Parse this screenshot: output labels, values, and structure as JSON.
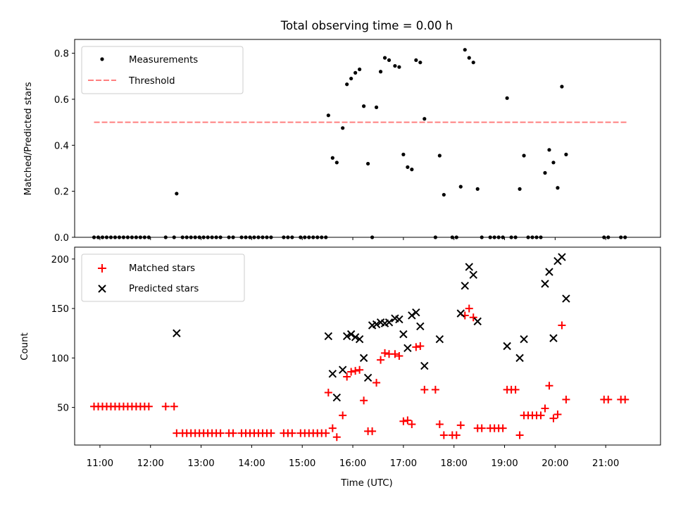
{
  "colors": {
    "measurement": "#000000",
    "threshold": "#ff7f7f",
    "matched": "#ff0000",
    "predicted": "#000000"
  },
  "chart_data": [
    {
      "type": "scatter",
      "title": "Total observing time = 0.00 h",
      "ylabel": "Matched/Predicted stars",
      "xlabel": "",
      "xlim": [
        "10:30",
        "22:05"
      ],
      "ylim": [
        0,
        0.86
      ],
      "yticks": [
        0.0,
        0.2,
        0.4,
        0.6,
        0.8
      ],
      "ytick_labels": [
        "0.0",
        "0.2",
        "0.4",
        "0.6",
        "0.8"
      ],
      "legend_position": "top-left",
      "legend": [
        "Measurements",
        "Threshold"
      ],
      "threshold": {
        "name": "Threshold",
        "y": 0.5,
        "x": [
          "10:53",
          "21:25"
        ]
      },
      "series": [
        {
          "name": "Measurements",
          "points": [
            [
              "10:53",
              0
            ],
            [
              "10:58",
              0
            ],
            [
              "11:03",
              0
            ],
            [
              "11:08",
              0
            ],
            [
              "11:13",
              0
            ],
            [
              "11:18",
              0
            ],
            [
              "11:23",
              0
            ],
            [
              "11:28",
              0
            ],
            [
              "11:33",
              0
            ],
            [
              "11:38",
              0
            ],
            [
              "11:43",
              0
            ],
            [
              "11:48",
              0
            ],
            [
              "11:53",
              0
            ],
            [
              "11:58",
              0
            ],
            [
              "12:18",
              0
            ],
            [
              "12:28",
              0
            ],
            [
              "12:31",
              0.19
            ],
            [
              "12:38",
              0
            ],
            [
              "12:43",
              0
            ],
            [
              "12:48",
              0
            ],
            [
              "12:53",
              0
            ],
            [
              "12:58",
              0
            ],
            [
              "13:03",
              0
            ],
            [
              "13:08",
              0
            ],
            [
              "13:13",
              0
            ],
            [
              "13:18",
              0
            ],
            [
              "13:23",
              0
            ],
            [
              "13:33",
              0
            ],
            [
              "13:38",
              0
            ],
            [
              "13:48",
              0
            ],
            [
              "13:53",
              0
            ],
            [
              "13:58",
              0
            ],
            [
              "14:03",
              0
            ],
            [
              "14:08",
              0
            ],
            [
              "14:13",
              0
            ],
            [
              "14:18",
              0
            ],
            [
              "14:23",
              0
            ],
            [
              "14:38",
              0
            ],
            [
              "14:43",
              0
            ],
            [
              "14:48",
              0
            ],
            [
              "14:58",
              0
            ],
            [
              "15:03",
              0
            ],
            [
              "15:08",
              0
            ],
            [
              "15:13",
              0
            ],
            [
              "15:18",
              0
            ],
            [
              "15:23",
              0
            ],
            [
              "15:28",
              0
            ],
            [
              "15:31",
              0.53
            ],
            [
              "15:36",
              0.345
            ],
            [
              "15:41",
              0.325
            ],
            [
              "15:48",
              0.475
            ],
            [
              "15:53",
              0.665
            ],
            [
              "15:58",
              0.69
            ],
            [
              "16:03",
              0.715
            ],
            [
              "16:08",
              0.73
            ],
            [
              "16:13",
              0.57
            ],
            [
              "16:18",
              0.32
            ],
            [
              "16:23",
              0
            ],
            [
              "16:28",
              0.565
            ],
            [
              "16:33",
              0.72
            ],
            [
              "16:38",
              0.78
            ],
            [
              "16:43",
              0.77
            ],
            [
              "16:50",
              0.745
            ],
            [
              "16:55",
              0.74
            ],
            [
              "17:00",
              0.36
            ],
            [
              "17:05",
              0.305
            ],
            [
              "17:10",
              0.295
            ],
            [
              "17:15",
              0.77
            ],
            [
              "17:20",
              0.76
            ],
            [
              "17:25",
              0.515
            ],
            [
              "17:38",
              0
            ],
            [
              "17:43",
              0.355
            ],
            [
              "17:48",
              0.185
            ],
            [
              "17:58",
              0
            ],
            [
              "18:03",
              0
            ],
            [
              "18:08",
              0.22
            ],
            [
              "18:13",
              0.815
            ],
            [
              "18:18",
              0.78
            ],
            [
              "18:23",
              0.76
            ],
            [
              "18:28",
              0.21
            ],
            [
              "18:33",
              0
            ],
            [
              "18:43",
              0
            ],
            [
              "18:48",
              0
            ],
            [
              "18:53",
              0
            ],
            [
              "18:58",
              0
            ],
            [
              "19:03",
              0.605
            ],
            [
              "19:08",
              0
            ],
            [
              "19:13",
              0
            ],
            [
              "19:18",
              0.21
            ],
            [
              "19:23",
              0.355
            ],
            [
              "19:28",
              0
            ],
            [
              "19:33",
              0
            ],
            [
              "19:38",
              0
            ],
            [
              "19:43",
              0
            ],
            [
              "19:48",
              0.28
            ],
            [
              "19:53",
              0.38
            ],
            [
              "19:58",
              0.325
            ],
            [
              "20:03",
              0.215
            ],
            [
              "20:08",
              0.655
            ],
            [
              "20:13",
              0.36
            ],
            [
              "20:58",
              0
            ],
            [
              "21:03",
              0
            ],
            [
              "21:18",
              0
            ],
            [
              "21:23",
              0
            ]
          ]
        }
      ]
    },
    {
      "type": "scatter",
      "title": "",
      "ylabel": "Count",
      "xlabel": "Time (UTC)",
      "xlim": [
        "10:30",
        "22:05"
      ],
      "ylim": [
        12,
        212
      ],
      "yticks": [
        50,
        100,
        150,
        200
      ],
      "ytick_labels": [
        "50",
        "100",
        "150",
        "200"
      ],
      "xticks": [
        "11:00",
        "12:00",
        "13:00",
        "14:00",
        "15:00",
        "16:00",
        "17:00",
        "18:00",
        "19:00",
        "20:00",
        "21:00"
      ],
      "xtick_labels": [
        "11:00",
        "12:00",
        "13:00",
        "14:00",
        "15:00",
        "16:00",
        "17:00",
        "18:00",
        "19:00",
        "20:00",
        "21:00"
      ],
      "legend_position": "top-left",
      "legend": [
        "Matched stars",
        "Predicted stars"
      ],
      "series": [
        {
          "name": "Matched stars",
          "marker": "plus",
          "points": [
            [
              "10:53",
              51
            ],
            [
              "10:58",
              51
            ],
            [
              "11:03",
              51
            ],
            [
              "11:08",
              51
            ],
            [
              "11:13",
              51
            ],
            [
              "11:18",
              51
            ],
            [
              "11:23",
              51
            ],
            [
              "11:28",
              51
            ],
            [
              "11:33",
              51
            ],
            [
              "11:38",
              51
            ],
            [
              "11:43",
              51
            ],
            [
              "11:48",
              51
            ],
            [
              "11:53",
              51
            ],
            [
              "11:58",
              51
            ],
            [
              "12:18",
              51
            ],
            [
              "12:28",
              51
            ],
            [
              "12:31",
              24
            ],
            [
              "12:38",
              24
            ],
            [
              "12:43",
              24
            ],
            [
              "12:48",
              24
            ],
            [
              "12:53",
              24
            ],
            [
              "12:58",
              24
            ],
            [
              "13:03",
              24
            ],
            [
              "13:08",
              24
            ],
            [
              "13:13",
              24
            ],
            [
              "13:18",
              24
            ],
            [
              "13:23",
              24
            ],
            [
              "13:33",
              24
            ],
            [
              "13:38",
              24
            ],
            [
              "13:48",
              24
            ],
            [
              "13:53",
              24
            ],
            [
              "13:58",
              24
            ],
            [
              "14:03",
              24
            ],
            [
              "14:08",
              24
            ],
            [
              "14:13",
              24
            ],
            [
              "14:18",
              24
            ],
            [
              "14:23",
              24
            ],
            [
              "14:38",
              24
            ],
            [
              "14:43",
              24
            ],
            [
              "14:48",
              24
            ],
            [
              "14:58",
              24
            ],
            [
              "15:03",
              24
            ],
            [
              "15:08",
              24
            ],
            [
              "15:13",
              24
            ],
            [
              "15:18",
              24
            ],
            [
              "15:23",
              24
            ],
            [
              "15:28",
              24
            ],
            [
              "15:31",
              65
            ],
            [
              "15:36",
              29
            ],
            [
              "15:41",
              20
            ],
            [
              "15:48",
              42
            ],
            [
              "15:53",
              81
            ],
            [
              "15:58",
              86
            ],
            [
              "16:03",
              87
            ],
            [
              "16:08",
              88
            ],
            [
              "16:13",
              57
            ],
            [
              "16:18",
              26
            ],
            [
              "16:23",
              26
            ],
            [
              "16:28",
              75
            ],
            [
              "16:33",
              98
            ],
            [
              "16:38",
              105
            ],
            [
              "16:43",
              104
            ],
            [
              "16:50",
              104
            ],
            [
              "16:55",
              102
            ],
            [
              "17:00",
              36
            ],
            [
              "17:05",
              37
            ],
            [
              "17:10",
              33
            ],
            [
              "17:15",
              111
            ],
            [
              "17:20",
              112
            ],
            [
              "17:25",
              68
            ],
            [
              "17:38",
              68
            ],
            [
              "17:43",
              33
            ],
            [
              "17:48",
              22
            ],
            [
              "17:58",
              22
            ],
            [
              "18:03",
              22
            ],
            [
              "18:08",
              32
            ],
            [
              "18:13",
              143
            ],
            [
              "18:18",
              150
            ],
            [
              "18:23",
              141
            ],
            [
              "18:28",
              29
            ],
            [
              "18:33",
              29
            ],
            [
              "18:43",
              29
            ],
            [
              "18:48",
              29
            ],
            [
              "18:53",
              29
            ],
            [
              "18:58",
              29
            ],
            [
              "19:03",
              68
            ],
            [
              "19:08",
              68
            ],
            [
              "19:13",
              68
            ],
            [
              "19:18",
              22
            ],
            [
              "19:23",
              42
            ],
            [
              "19:28",
              42
            ],
            [
              "19:33",
              42
            ],
            [
              "19:38",
              42
            ],
            [
              "19:43",
              42
            ],
            [
              "19:48",
              49
            ],
            [
              "19:53",
              72
            ],
            [
              "19:58",
              39
            ],
            [
              "20:03",
              43
            ],
            [
              "20:08",
              133
            ],
            [
              "20:13",
              58
            ],
            [
              "20:58",
              58
            ],
            [
              "21:03",
              58
            ],
            [
              "21:18",
              58
            ],
            [
              "21:23",
              58
            ]
          ]
        },
        {
          "name": "Predicted stars",
          "marker": "x",
          "points": [
            [
              "12:31",
              125
            ],
            [
              "15:31",
              122
            ],
            [
              "15:36",
              84
            ],
            [
              "15:41",
              60
            ],
            [
              "15:48",
              88
            ],
            [
              "15:53",
              122
            ],
            [
              "15:58",
              124
            ],
            [
              "16:03",
              121
            ],
            [
              "16:08",
              119
            ],
            [
              "16:13",
              100
            ],
            [
              "16:18",
              80
            ],
            [
              "16:23",
              133
            ],
            [
              "16:28",
              134
            ],
            [
              "16:33",
              136
            ],
            [
              "16:38",
              135
            ],
            [
              "16:43",
              136
            ],
            [
              "16:50",
              140
            ],
            [
              "16:55",
              139
            ],
            [
              "17:00",
              124
            ],
            [
              "17:05",
              110
            ],
            [
              "17:10",
              143
            ],
            [
              "17:15",
              146
            ],
            [
              "17:20",
              132
            ],
            [
              "17:25",
              92
            ],
            [
              "17:43",
              119
            ],
            [
              "18:08",
              145
            ],
            [
              "18:13",
              173
            ],
            [
              "18:18",
              192
            ],
            [
              "18:23",
              184
            ],
            [
              "18:28",
              137
            ],
            [
              "19:03",
              112
            ],
            [
              "19:18",
              100
            ],
            [
              "19:23",
              119
            ],
            [
              "19:48",
              175
            ],
            [
              "19:53",
              187
            ],
            [
              "19:58",
              120
            ],
            [
              "20:03",
              198
            ],
            [
              "20:08",
              202
            ],
            [
              "20:13",
              160
            ]
          ]
        }
      ]
    }
  ]
}
